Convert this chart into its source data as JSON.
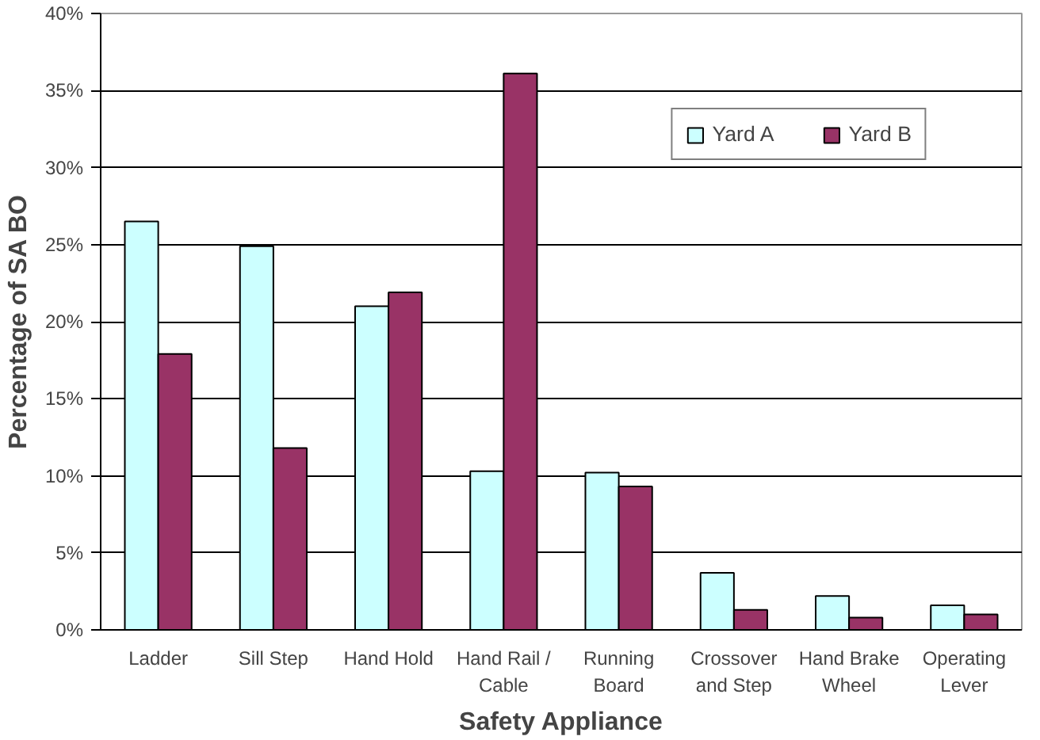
{
  "chart_data": {
    "type": "bar",
    "xlabel": "Safety Appliance",
    "ylabel": "Percentage of SA BO",
    "categories": [
      "Ladder",
      "Sill Step",
      "Hand Hold",
      "Hand Rail /\nCable",
      "Running\nBoard",
      "Crossover\nand Step",
      "Hand Brake\nWheel",
      "Operating\nLever"
    ],
    "series": [
      {
        "name": "Yard A",
        "color": "#ccffff",
        "values": [
          26.5,
          24.9,
          21.0,
          10.3,
          10.2,
          3.7,
          2.2,
          1.6
        ]
      },
      {
        "name": "Yard B",
        "color": "#993366",
        "values": [
          17.9,
          11.8,
          21.9,
          36.1,
          9.3,
          1.3,
          0.8,
          1.0
        ]
      }
    ],
    "ylim": [
      0,
      40
    ],
    "yticks": [
      {
        "value": 0,
        "label": "0%"
      },
      {
        "value": 5,
        "label": "5%"
      },
      {
        "value": 10,
        "label": "10%"
      },
      {
        "value": 15,
        "label": "15%"
      },
      {
        "value": 20,
        "label": "20%"
      },
      {
        "value": 25,
        "label": "25%"
      },
      {
        "value": 30,
        "label": "30%"
      },
      {
        "value": 35,
        "label": "35%"
      },
      {
        "value": 40,
        "label": "40%"
      }
    ],
    "grid": "y",
    "legend": "top right"
  }
}
